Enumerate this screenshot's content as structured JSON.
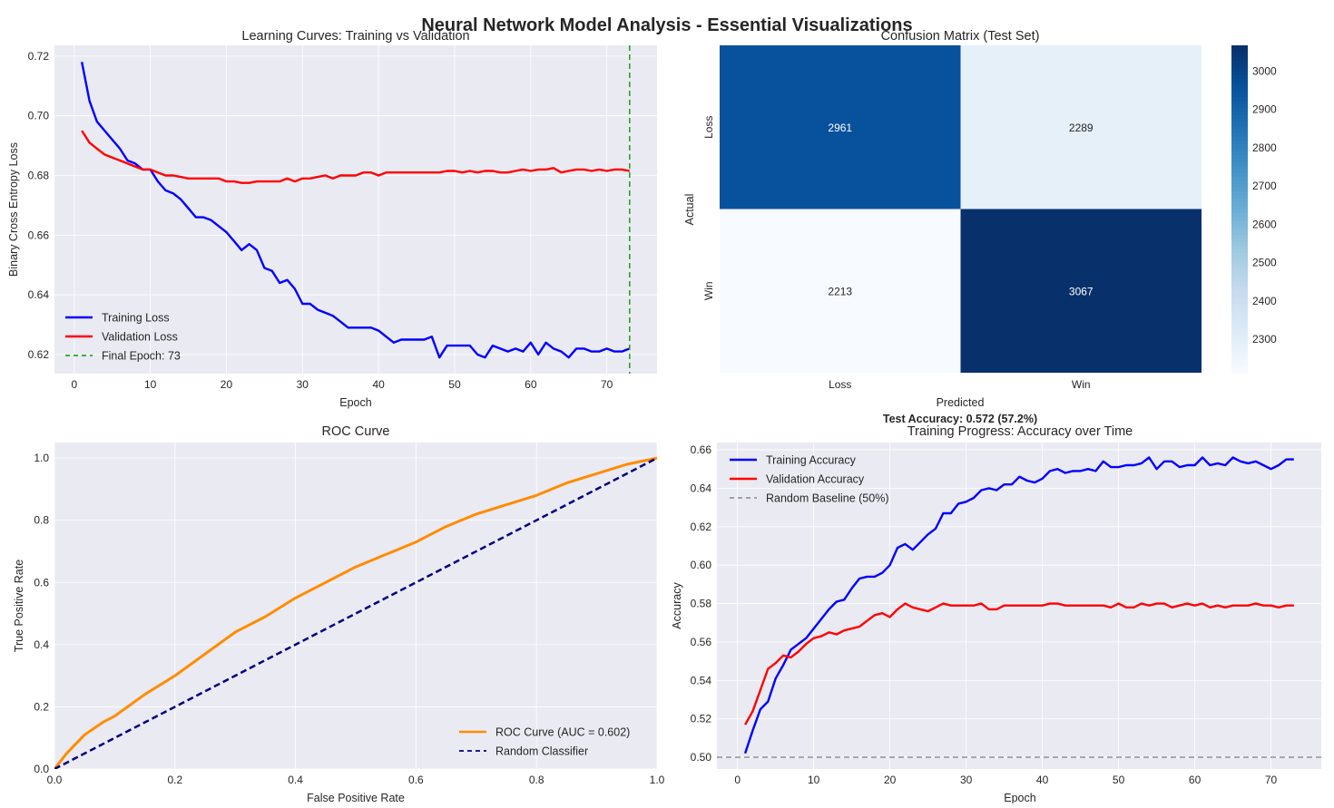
{
  "title": "Neural Network Model Analysis - Essential Visualizations",
  "colors": {
    "axes_bg": "#eaeaf2",
    "grid": "#ffffff",
    "blue": "#0000ff",
    "red": "#ff0000",
    "green": "#2ca02c",
    "orange": "#ff8c00",
    "navy": "#000080",
    "gray": "#999999"
  },
  "chart_data": [
    {
      "type": "line",
      "title": "Learning Curves: Training vs Validation",
      "xlabel": "Epoch",
      "ylabel": "Binary Cross Entropy Loss",
      "xlim": [
        -2.6,
        76.6
      ],
      "ylim": [
        0.6136,
        0.7236
      ],
      "xticks": [
        0,
        10,
        20,
        30,
        40,
        50,
        60,
        70
      ],
      "yticks": [
        0.62,
        0.64,
        0.66,
        0.68,
        0.7,
        0.72
      ],
      "grid": true,
      "legend": "lower-left",
      "series": [
        {
          "name": "Training Loss",
          "color": "#0000ff",
          "style": "solid",
          "values": [
            0.718,
            0.705,
            0.698,
            0.695,
            0.692,
            0.689,
            0.685,
            0.684,
            0.682,
            0.682,
            0.678,
            0.675,
            0.674,
            0.672,
            0.669,
            0.666,
            0.666,
            0.665,
            0.663,
            0.661,
            0.658,
            0.655,
            0.657,
            0.655,
            0.649,
            0.648,
            0.644,
            0.645,
            0.642,
            0.637,
            0.637,
            0.635,
            0.634,
            0.633,
            0.631,
            0.629,
            0.629,
            0.629,
            0.629,
            0.628,
            0.626,
            0.624,
            0.625,
            0.625,
            0.625,
            0.625,
            0.626,
            0.619,
            0.623,
            0.623,
            0.623,
            0.623,
            0.62,
            0.619,
            0.623,
            0.622,
            0.621,
            0.622,
            0.621,
            0.624,
            0.62,
            0.624,
            0.622,
            0.621,
            0.619,
            0.622,
            0.622,
            0.621,
            0.621,
            0.622,
            0.621,
            0.621,
            0.622
          ]
        },
        {
          "name": "Validation Loss",
          "color": "#ff0000",
          "style": "solid",
          "values": [
            0.695,
            0.691,
            0.689,
            0.687,
            0.686,
            0.685,
            0.684,
            0.683,
            0.682,
            0.682,
            0.681,
            0.68,
            0.68,
            0.6795,
            0.679,
            0.679,
            0.679,
            0.679,
            0.679,
            0.678,
            0.678,
            0.6775,
            0.6775,
            0.678,
            0.678,
            0.678,
            0.678,
            0.679,
            0.678,
            0.679,
            0.679,
            0.6795,
            0.68,
            0.679,
            0.68,
            0.68,
            0.68,
            0.681,
            0.681,
            0.68,
            0.681,
            0.681,
            0.681,
            0.681,
            0.681,
            0.681,
            0.681,
            0.681,
            0.6815,
            0.6815,
            0.681,
            0.6815,
            0.681,
            0.6815,
            0.6815,
            0.681,
            0.681,
            0.6815,
            0.682,
            0.6815,
            0.682,
            0.682,
            0.6825,
            0.681,
            0.6815,
            0.682,
            0.682,
            0.6815,
            0.682,
            0.6815,
            0.682,
            0.682,
            0.6815
          ]
        },
        {
          "name": "Final Epoch: 73",
          "color": "#2ca02c",
          "style": "dashed",
          "vline": 73
        }
      ]
    },
    {
      "type": "heatmap",
      "title": "Confusion Matrix (Test Set)",
      "xlabel": "Predicted",
      "ylabel": "Actual",
      "x_categories": [
        "Loss",
        "Win"
      ],
      "y_categories": [
        "Loss",
        "Win"
      ],
      "values": [
        [
          2961,
          2289
        ],
        [
          2213,
          3067
        ]
      ],
      "colormap": "Blues",
      "colorbar_range": [
        2213,
        3067
      ],
      "colorbar_ticks": [
        2300,
        2400,
        2500,
        2600,
        2700,
        2800,
        2900,
        3000
      ],
      "annotation": "Test Accuracy: 0.572 (57.2%)"
    },
    {
      "type": "line",
      "title": "ROC Curve",
      "xlabel": "False Positive Rate",
      "ylabel": "True Positive Rate",
      "xlim": [
        0,
        1
      ],
      "ylim": [
        0,
        1.05
      ],
      "xticks": [
        0.0,
        0.2,
        0.4,
        0.6,
        0.8,
        1.0
      ],
      "yticks": [
        0.0,
        0.2,
        0.4,
        0.6,
        0.8,
        1.0
      ],
      "grid": true,
      "legend": "lower-right",
      "series": [
        {
          "name": "ROC Curve (AUC = 0.602)",
          "color": "#ff8c00",
          "style": "solid",
          "x": [
            0,
            0.02,
            0.05,
            0.08,
            0.1,
            0.15,
            0.2,
            0.25,
            0.3,
            0.35,
            0.4,
            0.45,
            0.5,
            0.55,
            0.6,
            0.65,
            0.7,
            0.75,
            0.8,
            0.85,
            0.9,
            0.95,
            1.0
          ],
          "y": [
            0,
            0.05,
            0.11,
            0.15,
            0.17,
            0.24,
            0.3,
            0.37,
            0.44,
            0.49,
            0.55,
            0.6,
            0.65,
            0.69,
            0.73,
            0.78,
            0.82,
            0.85,
            0.88,
            0.92,
            0.95,
            0.98,
            1.0
          ]
        },
        {
          "name": "Random Classifier",
          "color": "#000080",
          "style": "dashed",
          "x": [
            0,
            1
          ],
          "y": [
            0,
            1
          ]
        }
      ]
    },
    {
      "type": "line",
      "title": "Training Progress: Accuracy over Time",
      "xlabel": "Epoch",
      "ylabel": "Accuracy",
      "xlim": [
        -2.7,
        76.6
      ],
      "ylim": [
        0.4939,
        0.6638
      ],
      "xticks": [
        0,
        10,
        20,
        30,
        40,
        50,
        60,
        70
      ],
      "yticks": [
        0.5,
        0.52,
        0.54,
        0.56,
        0.58,
        0.6,
        0.62,
        0.64,
        0.66
      ],
      "grid": true,
      "legend": "upper-left",
      "series": [
        {
          "name": "Training Accuracy",
          "color": "#0000ff",
          "style": "solid",
          "values": [
            0.502,
            0.514,
            0.525,
            0.529,
            0.541,
            0.548,
            0.556,
            0.559,
            0.562,
            0.567,
            0.572,
            0.577,
            0.581,
            0.582,
            0.588,
            0.593,
            0.594,
            0.594,
            0.596,
            0.6,
            0.609,
            0.611,
            0.608,
            0.612,
            0.616,
            0.619,
            0.627,
            0.627,
            0.632,
            0.633,
            0.635,
            0.639,
            0.64,
            0.639,
            0.642,
            0.642,
            0.646,
            0.644,
            0.643,
            0.645,
            0.649,
            0.65,
            0.648,
            0.649,
            0.649,
            0.65,
            0.649,
            0.654,
            0.651,
            0.651,
            0.652,
            0.652,
            0.653,
            0.656,
            0.65,
            0.654,
            0.654,
            0.651,
            0.652,
            0.652,
            0.656,
            0.652,
            0.653,
            0.652,
            0.656,
            0.654,
            0.653,
            0.654,
            0.652,
            0.65,
            0.652,
            0.655,
            0.655
          ]
        },
        {
          "name": "Validation Accuracy",
          "color": "#ff0000",
          "style": "solid",
          "values": [
            0.517,
            0.524,
            0.535,
            0.546,
            0.549,
            0.553,
            0.552,
            0.555,
            0.559,
            0.562,
            0.563,
            0.565,
            0.564,
            0.566,
            0.567,
            0.568,
            0.571,
            0.574,
            0.575,
            0.573,
            0.577,
            0.58,
            0.578,
            0.577,
            0.576,
            0.578,
            0.58,
            0.579,
            0.579,
            0.579,
            0.579,
            0.58,
            0.577,
            0.577,
            0.579,
            0.579,
            0.579,
            0.579,
            0.579,
            0.579,
            0.58,
            0.58,
            0.579,
            0.579,
            0.579,
            0.579,
            0.579,
            0.579,
            0.578,
            0.58,
            0.578,
            0.578,
            0.58,
            0.579,
            0.58,
            0.58,
            0.578,
            0.579,
            0.58,
            0.579,
            0.58,
            0.578,
            0.579,
            0.578,
            0.579,
            0.579,
            0.579,
            0.58,
            0.579,
            0.579,
            0.578,
            0.579,
            0.579
          ]
        },
        {
          "name": "Random Baseline (50%)",
          "color": "#999999",
          "style": "dashed",
          "hline": 0.5
        }
      ]
    }
  ]
}
